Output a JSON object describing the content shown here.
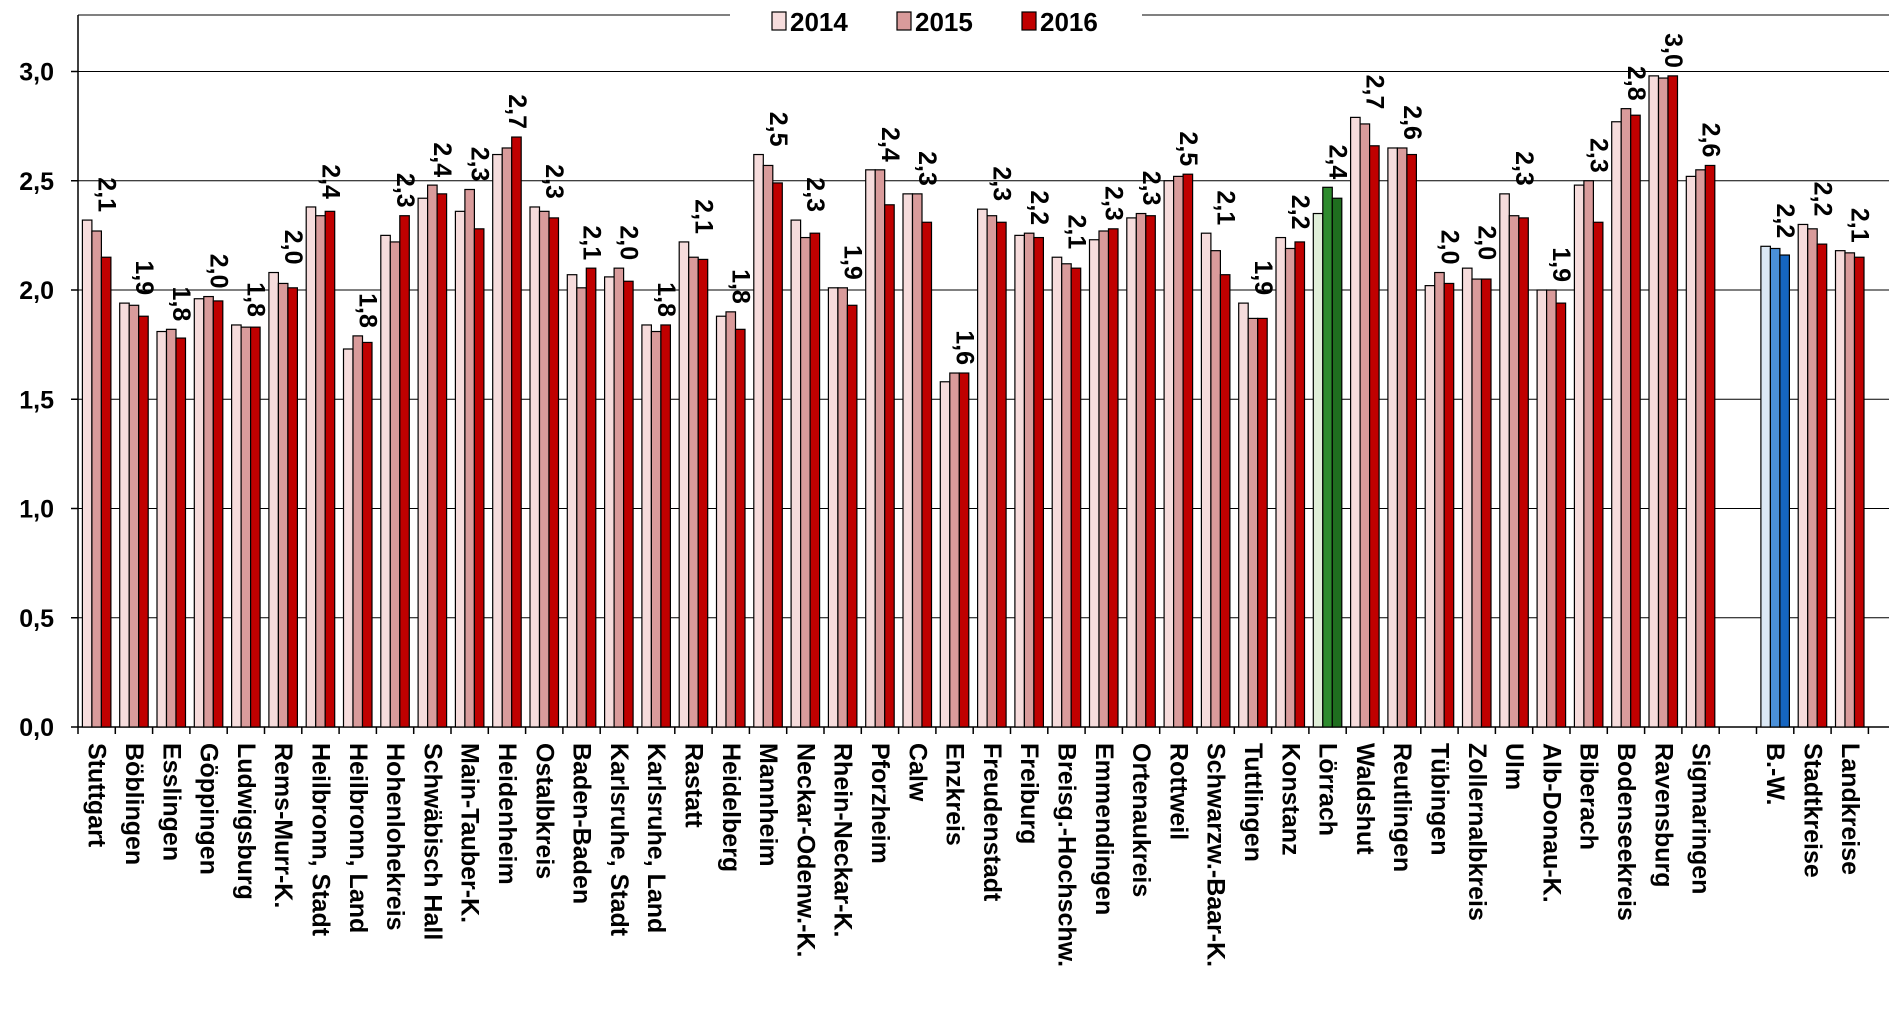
{
  "chart_data": {
    "type": "bar",
    "title": "",
    "xlabel": "",
    "ylabel": "",
    "ylim": [
      0,
      3.0
    ],
    "yticks": [
      "0,0",
      "0,5",
      "1,0",
      "1,5",
      "2,0",
      "2,5",
      "3,0"
    ],
    "grid": "horizontal",
    "legend_position": "top",
    "categories": [
      "Stuttgart",
      "Böblingen",
      "Esslingen",
      "Göppingen",
      "Ludwigsburg",
      "Rems-Murr-K.",
      "Heilbronn, Stadt",
      "Heilbronn, Land",
      "Hohenlohekreis",
      "Schwäbisch Hall",
      "Main-Tauber-K.",
      "Heidenheim",
      "Ostalbkreis",
      "Baden-Baden",
      "Karlsruhe, Stadt",
      "Karlsruhe, Land",
      "Rastatt",
      "Heidelberg",
      "Mannheim",
      "Neckar-Odenw.-K.",
      "Rhein-Neckar-K.",
      "Pforzheim",
      "Calw",
      "Enzkreis",
      "Freudenstadt",
      "Freiburg",
      "Breisg.-Hochschw.",
      "Emmendingen",
      "Ortenaukreis",
      "Rottweil",
      "Schwarzw.-Baar-K.",
      "Tuttlingen",
      "Konstanz",
      "Lörrach",
      "Waldshut",
      "Reutlingen",
      "Tübingen",
      "Zollernalbkreis",
      "Ulm",
      "Alb-Donau-K.",
      "Biberach",
      "Bodenseekreis",
      "Ravensburg",
      "Sigmaringen",
      "",
      "B.-W.",
      "Stadtkreise",
      "Landkreise"
    ],
    "series": [
      {
        "name": "2014",
        "color": "#f6dcdc",
        "values": [
          2.32,
          1.94,
          1.81,
          1.96,
          1.84,
          2.08,
          2.38,
          1.73,
          2.25,
          2.42,
          2.36,
          2.62,
          2.38,
          2.07,
          2.06,
          1.84,
          2.22,
          1.88,
          2.62,
          2.32,
          2.01,
          2.55,
          2.44,
          1.58,
          2.37,
          2.25,
          2.15,
          2.23,
          2.33,
          2.5,
          2.26,
          1.94,
          2.24,
          2.35,
          2.79,
          2.65,
          2.02,
          2.1,
          2.44,
          2.0,
          2.48,
          2.77,
          2.98,
          2.52,
          null,
          2.2,
          2.3,
          2.18
        ]
      },
      {
        "name": "2015",
        "color": "#d99b9b",
        "values": [
          2.27,
          1.93,
          1.82,
          1.97,
          1.83,
          2.03,
          2.34,
          1.79,
          2.22,
          2.48,
          2.46,
          2.65,
          2.36,
          2.01,
          2.1,
          1.81,
          2.15,
          1.9,
          2.57,
          2.24,
          2.01,
          2.55,
          2.44,
          1.62,
          2.34,
          2.26,
          2.12,
          2.27,
          2.35,
          2.52,
          2.18,
          1.87,
          2.19,
          2.47,
          2.76,
          2.65,
          2.08,
          2.05,
          2.34,
          2.0,
          2.5,
          2.83,
          2.97,
          2.55,
          null,
          2.19,
          2.28,
          2.17
        ]
      },
      {
        "name": "2016",
        "color": "#c00000",
        "values": [
          2.15,
          1.88,
          1.78,
          1.95,
          1.83,
          2.01,
          2.36,
          1.76,
          2.34,
          2.44,
          2.28,
          2.7,
          2.33,
          2.1,
          2.04,
          1.84,
          2.14,
          1.82,
          2.49,
          2.26,
          1.93,
          2.39,
          2.31,
          1.62,
          2.31,
          2.24,
          2.1,
          2.28,
          2.34,
          2.53,
          2.07,
          1.87,
          2.22,
          2.42,
          2.66,
          2.62,
          2.03,
          2.05,
          2.33,
          1.94,
          2.31,
          2.8,
          2.98,
          2.57,
          null,
          2.16,
          2.21,
          2.15
        ]
      }
    ],
    "data_labels": [
      "2,1",
      "1,9",
      "1,8",
      "2,0",
      "1,8",
      "2,0",
      "2,4",
      "1,8",
      "2,3",
      "2,4",
      "2,3",
      "2,7",
      "2,3",
      "2,1",
      "2,0",
      "1,8",
      "2,1",
      "1,8",
      "2,5",
      "2,3",
      "1,9",
      "2,4",
      "2,3",
      "1,6",
      "2,3",
      "2,2",
      "2,1",
      "2,3",
      "2,3",
      "2,5",
      "2,1",
      "1,9",
      "2,2",
      "2,4",
      "2,7",
      "2,6",
      "2,0",
      "2,0",
      "2,3",
      "1,9",
      "2,3",
      "2,8",
      "3,0",
      "2,6",
      "",
      "2,2",
      "2,2",
      "2,1"
    ],
    "highlights": {
      "Lörrach": {
        "colors": [
          "#e0efd9",
          "#2e8b2e",
          "#1f6e1f"
        ]
      },
      "B.-W.": {
        "colors": [
          "#dbe8f5",
          "#4a90d9",
          "#1565c0"
        ]
      }
    }
  }
}
